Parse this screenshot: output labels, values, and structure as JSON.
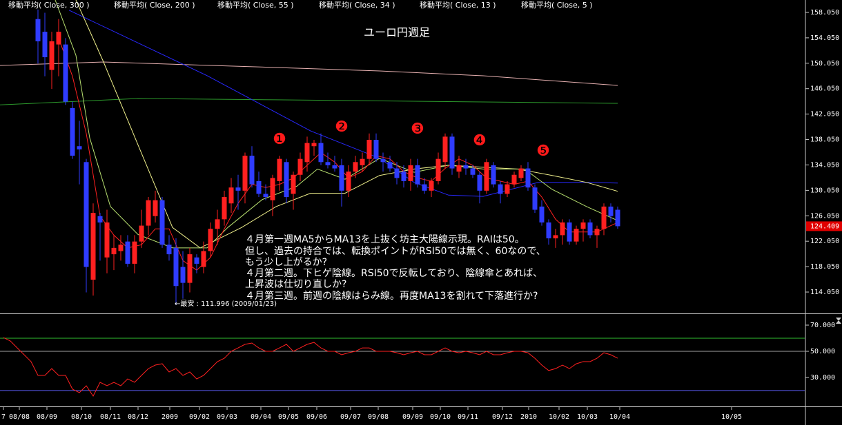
{
  "chart_data": [
    {
      "type": "candlestick",
      "title": "ユーロ円週足",
      "x": [
        5,
        6,
        7,
        8,
        9,
        10,
        11,
        12,
        13,
        14,
        15,
        16,
        17,
        18,
        19,
        20,
        21,
        22,
        23,
        24,
        25,
        26,
        27,
        28,
        29,
        30,
        31,
        32,
        33,
        34,
        35,
        36,
        37,
        38,
        39,
        40,
        41,
        42,
        43,
        44,
        45,
        46,
        47,
        48,
        49,
        50,
        51,
        52,
        53,
        54,
        55,
        56,
        57,
        58,
        59,
        60,
        61,
        62,
        63,
        64,
        65,
        66,
        67,
        68,
        69,
        70,
        71,
        72,
        73,
        74,
        75,
        76,
        77,
        78,
        79,
        80,
        81,
        82,
        83,
        84,
        85,
        86,
        87,
        88,
        89
      ],
      "open": [
        157,
        155,
        149,
        153,
        153,
        143,
        137,
        134.5,
        116,
        126,
        119.5,
        120,
        120.5,
        122,
        118.5,
        122,
        124.5,
        126,
        128.5,
        121.5,
        121,
        118,
        115.5,
        119.5,
        118,
        120.5,
        124,
        125.5,
        128,
        130.5,
        130,
        135.5,
        131.5,
        129.5,
        128.5,
        131.5,
        134.5,
        129.5,
        132.5,
        134.5,
        137,
        137.5,
        134.5,
        134,
        134,
        130,
        133,
        134,
        135,
        138,
        135,
        134.5,
        133.5,
        133,
        131.5,
        134,
        131,
        130,
        131.5,
        134.5,
        138.5,
        133,
        134,
        133.5,
        132.5,
        130,
        134,
        131,
        129.5,
        131,
        132,
        133.5,
        130.5,
        127.5,
        125,
        122.5,
        123,
        125,
        122,
        124,
        125,
        123,
        124,
        127.5,
        127
      ],
      "high": [
        158.5,
        158,
        155,
        157,
        154,
        144,
        141,
        135,
        128,
        126.5,
        127,
        123,
        123,
        123,
        123,
        127,
        129,
        130,
        129,
        123,
        122.5,
        120.5,
        121,
        120,
        122,
        125,
        127,
        130,
        132,
        132.5,
        136,
        137,
        133,
        131,
        132.5,
        135.5,
        135,
        133,
        136,
        138.5,
        138,
        139,
        136,
        135.5,
        135,
        134,
        135.5,
        136,
        139,
        139,
        136,
        135.5,
        134.5,
        134,
        135,
        135,
        132,
        132,
        136,
        139,
        139,
        135.5,
        135,
        134,
        133,
        135,
        134.5,
        131.5,
        131.5,
        133,
        134,
        134.5,
        131,
        128.5,
        125.5,
        124,
        125.5,
        125.5,
        124.5,
        125.5,
        125.5,
        124.5,
        128,
        128,
        127.5
      ],
      "low": [
        150,
        148,
        146,
        148,
        143.5,
        135,
        131,
        114,
        113.5,
        119,
        117,
        117.5,
        119,
        118,
        117,
        121,
        123,
        125,
        121,
        119,
        111.996,
        113,
        114,
        117,
        117,
        119.5,
        121.5,
        124.5,
        126.5,
        127,
        128,
        130.5,
        129,
        128.5,
        126,
        130,
        128,
        127,
        131.5,
        133,
        135.5,
        134,
        133.5,
        133,
        127.5,
        129,
        132,
        133,
        134,
        134.5,
        133,
        133,
        131,
        130.5,
        130,
        130.5,
        129.5,
        129,
        131,
        133.5,
        132.5,
        132,
        132.5,
        132,
        128,
        129.5,
        130.5,
        128,
        129,
        130.5,
        131.5,
        130,
        126.5,
        124.5,
        121.5,
        121,
        121.5,
        121.5,
        121.5,
        122,
        122.5,
        121,
        123,
        125,
        124
      ],
      "close": [
        153.5,
        151,
        153.5,
        155,
        144,
        135.5,
        136.5,
        118,
        126.5,
        125,
        125,
        121,
        121.5,
        118.5,
        122,
        124.5,
        128.5,
        128.5,
        121.5,
        120,
        115,
        115.5,
        120,
        118.5,
        120.5,
        124,
        125.5,
        129,
        130.5,
        130,
        135.5,
        131,
        129.5,
        129,
        132,
        135,
        129,
        132.5,
        135,
        137.5,
        137.5,
        134.5,
        134,
        133.5,
        130,
        133,
        134.5,
        135,
        138,
        135,
        134.5,
        133.5,
        132,
        131.5,
        134,
        131,
        130,
        131.5,
        135,
        138.5,
        133.5,
        134,
        133.5,
        132.5,
        130,
        134.5,
        131,
        129.5,
        131,
        132.5,
        133.5,
        130.5,
        127,
        125,
        122.5,
        123,
        125,
        122,
        124,
        125,
        123,
        124,
        127.5,
        126,
        124.409
      ],
      "up_color": "#ff2020",
      "down_color": "#2f3cff",
      "series": [
        {
          "name": "移動平均( Close, 300 )",
          "color": "#e6b0b0",
          "x": [
            -0.5,
            14.5,
            39.5,
            54.5,
            69.5,
            89
          ],
          "values": [
            149.7,
            150.25,
            149.38,
            148.84,
            148.08,
            146.56
          ]
        },
        {
          "name": "移動平均( Close, 200 )",
          "color": "#2c9a2c",
          "x": [
            -0.5,
            19.5,
            39.5,
            69.5,
            89
          ],
          "values": [
            143.5,
            144.5,
            144.3,
            143.96,
            143.74
          ]
        },
        {
          "name": "移動平均( Close, 55 )",
          "color": "#2828ff",
          "x": [
            9.5,
            29.5,
            44.5,
            54.5,
            59.5,
            64.5,
            69.5,
            77.5,
            84.5,
            89
          ],
          "values": [
            158.4,
            148.1,
            139.4,
            135.1,
            131.3,
            129.3,
            129.1,
            131.3,
            131.3,
            131.2
          ]
        },
        {
          "name": "移動平均( Close, 34 )",
          "color": "#f0f08c",
          "x": [
            10.5,
            14.5,
            19.5,
            24.5,
            28.5,
            34.5,
            39.5,
            44.5,
            49.5,
            54.5,
            59.5,
            64.5,
            69.5,
            74.5,
            79.5,
            84.5,
            89
          ],
          "values": [
            160,
            150.25,
            137.2,
            124.2,
            121.0,
            124.2,
            127.5,
            129.6,
            129.6,
            132.4,
            133.4,
            134.0,
            133.7,
            133.4,
            132.4,
            131.3,
            129.9
          ]
        },
        {
          "name": "移動平均( Close, 13 )",
          "color": "#b8e070",
          "x": [
            7.5,
            10.5,
            12.5,
            15.5,
            19.5,
            24.5,
            29.5,
            32.5,
            37.5,
            42.5,
            45.5,
            49.5,
            54.5,
            59.5,
            64.5,
            69.5,
            75.5,
            79.5,
            84.5,
            89
          ],
          "values": [
            160,
            151.3,
            138.3,
            127.5,
            123.1,
            121.0,
            121.0,
            124.2,
            128.6,
            130.7,
            133.4,
            131.8,
            135.1,
            132.9,
            134.0,
            133.4,
            133.4,
            130.2,
            127.5,
            125.3
          ]
        },
        {
          "name": "移動平均( Close, 5 )",
          "color": "#ff2020",
          "x": [
            8,
            10,
            12,
            14,
            16,
            18,
            20,
            22,
            24,
            26,
            28,
            30,
            32,
            34,
            36,
            38,
            40,
            42,
            44,
            46,
            48,
            50,
            52,
            54,
            56,
            58,
            60,
            62,
            64,
            66,
            68,
            70,
            72,
            74,
            76,
            78,
            80,
            82,
            84,
            86,
            88,
            89
          ],
          "values": [
            154,
            148,
            139,
            126,
            123,
            121,
            121.5,
            124,
            124,
            119,
            117.5,
            119.5,
            124,
            128,
            131,
            130.5,
            131,
            132,
            134,
            136,
            134.5,
            132,
            133,
            135.5,
            135,
            133,
            132,
            131.5,
            133.5,
            135,
            134,
            132,
            131.5,
            131,
            131.5,
            129,
            125.5,
            123.5,
            123.5,
            123.5,
            124.5,
            125
          ]
        }
      ],
      "xlim": [
        -0.5,
        115.5
      ],
      "ylim": [
        110.69,
        160.0
      ],
      "yticks": [
        {
          "value": 158.05,
          "label": "158.050"
        },
        {
          "value": 154.05,
          "label": "154.050"
        },
        {
          "value": 150.05,
          "label": "150.050"
        },
        {
          "value": 146.05,
          "label": "146.050"
        },
        {
          "value": 142.05,
          "label": "142.050"
        },
        {
          "value": 138.05,
          "label": "138.050"
        },
        {
          "value": 134.05,
          "label": "134.050"
        },
        {
          "value": 130.05,
          "label": "130.050"
        },
        {
          "value": 126.05,
          "label": "126.050"
        },
        {
          "value": 122.05,
          "label": "122.050"
        },
        {
          "value": 118.05,
          "label": "118.050"
        },
        {
          "value": 114.05,
          "label": "114.050"
        }
      ],
      "notes": [
        "４月第一週MA5からMA13を上抜く坊主大陽線示現。RAIは50。",
        "但し、過去の持合では、転換ポイントがRSI50では無く、60なので、",
        "もう少し上がるか?",
        "４月第二週。下ヒゲ陰線。RSI50で反転しており、陰線傘とあれば、",
        "上昇波は仕切り直しか?",
        "４月第三週。前週の陰線はらみ線。再度MA13を割れて下落進行か?"
      ],
      "low_note": "←最安 : 111.996 (2009/01/23)",
      "markers": [
        "❶",
        "❷",
        "❸",
        "❹",
        "❺"
      ],
      "marker_color": "#ff1a1a"
    },
    {
      "type": "line",
      "series": [
        {
          "color": "#ff2020",
          "x": [
            0,
            1,
            2,
            3,
            4,
            5,
            6,
            7,
            8,
            9,
            10,
            11,
            12,
            13,
            14,
            15,
            16,
            17,
            18,
            19,
            20,
            21,
            22,
            23,
            24,
            25,
            26,
            27,
            28,
            29,
            30,
            31,
            32,
            33,
            34,
            35,
            36,
            37,
            38,
            39,
            40,
            41,
            42,
            43,
            44,
            45,
            46,
            47,
            48,
            49,
            50,
            51,
            52,
            53,
            54,
            55,
            56,
            57,
            58,
            59,
            60,
            61,
            62,
            63,
            64,
            65,
            66,
            67,
            68,
            69,
            70,
            71,
            72,
            73,
            74,
            75,
            76,
            77,
            78,
            79,
            80,
            81,
            82,
            83,
            84,
            85,
            86,
            87,
            88,
            89
          ],
          "values": [
            60.5,
            57.9,
            52.6,
            47.4,
            42.1,
            31.6,
            31.6,
            36.8,
            31.6,
            31.6,
            21.1,
            18.4,
            23.7,
            15.8,
            26.3,
            23.7,
            26.3,
            23.7,
            28.9,
            26.3,
            31.6,
            36.8,
            39.5,
            40.5,
            34.2,
            36.8,
            31.6,
            34.2,
            28.9,
            31.6,
            36.8,
            42.1,
            44.7,
            50,
            52.6,
            55.3,
            56.3,
            52.6,
            50,
            50,
            52.6,
            55.3,
            50,
            52.6,
            55.3,
            56.8,
            52.6,
            50,
            50,
            47.4,
            48.9,
            50,
            52.6,
            52.6,
            50,
            50,
            50,
            48.9,
            47.4,
            48.9,
            50,
            47.4,
            47.4,
            50,
            52.6,
            50,
            48.9,
            50,
            48.9,
            47.4,
            50,
            47.4,
            47.4,
            48.9,
            50,
            50,
            48.9,
            44.7,
            39.5,
            35.3,
            36.8,
            39.5,
            36.8,
            40.5,
            42.1,
            42.1,
            44.7,
            48.9,
            47.4,
            44.7
          ]
        }
      ],
      "levels": [
        {
          "value": 60,
          "color": "#30c030"
        },
        {
          "value": 50,
          "color": "#a0a0a0"
        },
        {
          "value": 20,
          "color": "#6060ff"
        }
      ],
      "xlim": [
        -0.5,
        115.5
      ],
      "ylim": [
        7.9,
        77.9
      ],
      "yticks": [
        {
          "value": 70,
          "label": "70.000"
        },
        {
          "value": 50,
          "label": "50.000"
        },
        {
          "value": 30,
          "label": "30.000"
        }
      ],
      "xticks": [
        {
          "value": 0,
          "label": "7"
        },
        {
          "value": 2.3,
          "label": "08/08"
        },
        {
          "value": 6.3,
          "label": "08/09"
        },
        {
          "value": 11.3,
          "label": "08/10"
        },
        {
          "value": 15.5,
          "label": "08/11"
        },
        {
          "value": 19.5,
          "label": "08/12"
        },
        {
          "value": 24.1,
          "label": "2009"
        },
        {
          "value": 28.4,
          "label": "09/02"
        },
        {
          "value": 32.4,
          "label": "09/03"
        },
        {
          "value": 37.3,
          "label": "09/04"
        },
        {
          "value": 41.3,
          "label": "09/05"
        },
        {
          "value": 45.4,
          "label": "09/06"
        },
        {
          "value": 50.3,
          "label": "09/07"
        },
        {
          "value": 54.3,
          "label": "09/08"
        },
        {
          "value": 59.3,
          "label": "09/09"
        },
        {
          "value": 63.3,
          "label": "09/10"
        },
        {
          "value": 67.3,
          "label": "09/11"
        },
        {
          "value": 72.3,
          "label": "09/12"
        },
        {
          "value": 76.1,
          "label": "2010"
        },
        {
          "value": 80.5,
          "label": "10/02"
        },
        {
          "value": 84.6,
          "label": "10/03"
        },
        {
          "value": 89.3,
          "label": "10/04"
        },
        {
          "value": 105.5,
          "label": "10/05"
        }
      ]
    }
  ]
}
